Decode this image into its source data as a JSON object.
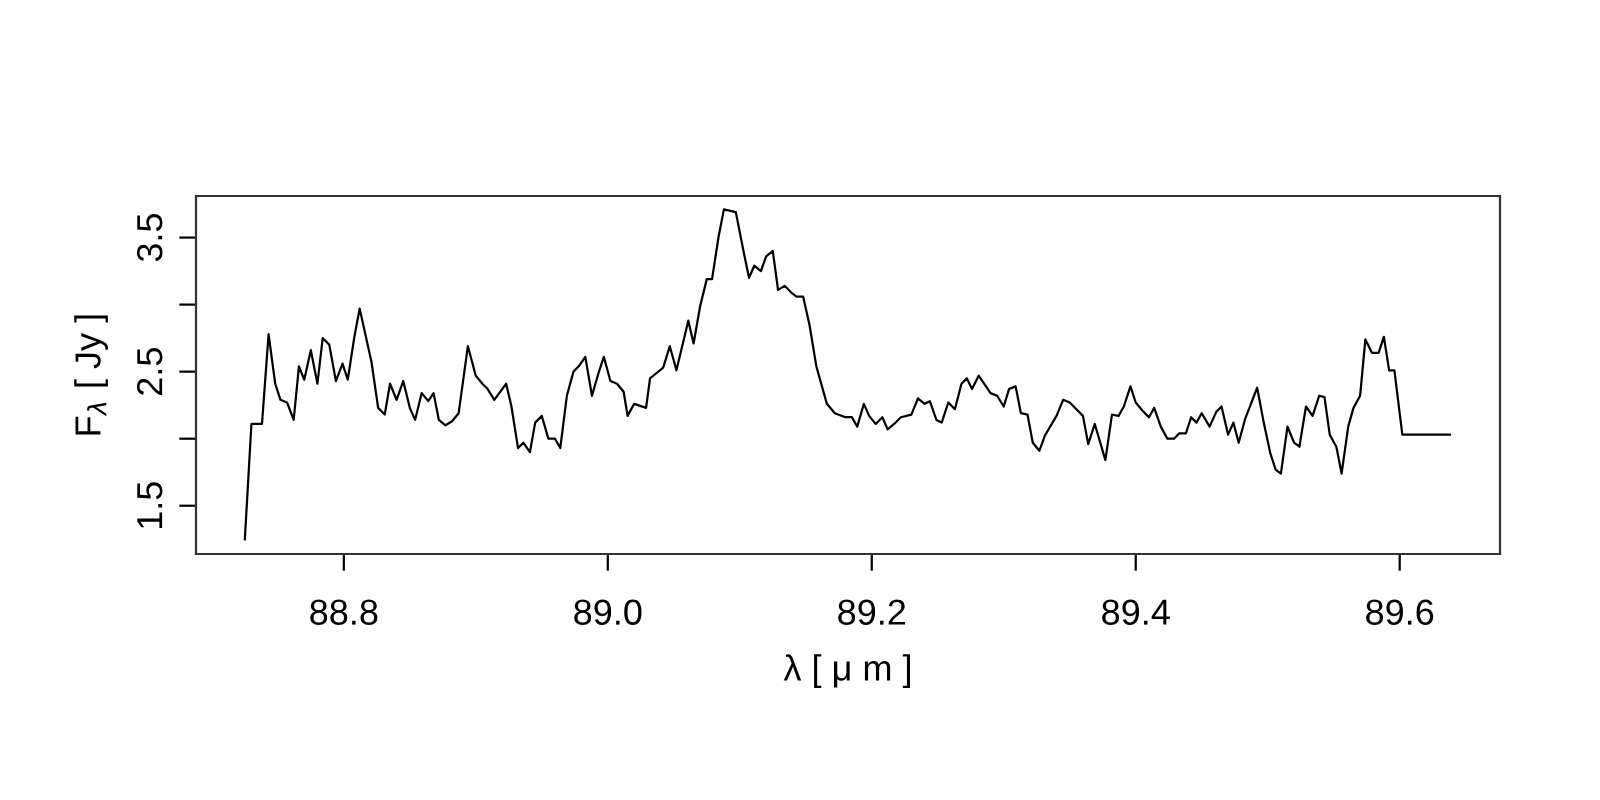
{
  "chart_data": {
    "type": "line",
    "xlabel": "λ [ μ m ]",
    "ylabel": "F$_{λ}$ [ Jy ]",
    "xlim": [
      88.688,
      89.676
    ],
    "ylim": [
      1.14,
      3.81
    ],
    "xticks": [
      88.8,
      {
        "value": 89,
        "label": "89.0"
      },
      89.2,
      89.4,
      89.6
    ],
    "yticks": [
      1.5,
      {
        "value": 2,
        "label": null
      },
      2.5,
      {
        "value": 3,
        "label": null
      },
      3.5
    ],
    "grid": false,
    "legend": false,
    "marker": "none",
    "line_style": "solid",
    "series": [
      {
        "color": "#000000",
        "x": [
          88.725,
          88.73,
          88.738,
          88.743,
          88.748,
          88.752,
          88.757,
          88.762,
          88.766,
          88.77,
          88.775,
          88.78,
          88.784,
          88.789,
          88.794,
          88.799,
          88.803,
          88.808,
          88.812,
          88.821,
          88.826,
          88.831,
          88.835,
          88.84,
          88.845,
          88.85,
          88.854,
          88.859,
          88.864,
          88.868,
          88.872,
          88.877,
          88.882,
          88.887,
          88.894,
          88.9,
          88.905,
          88.909,
          88.914,
          88.923,
          88.927,
          88.932,
          88.936,
          88.941,
          88.945,
          88.95,
          88.955,
          88.96,
          88.964,
          88.969,
          88.974,
          88.978,
          88.983,
          88.988,
          88.993,
          88.997,
          89.002,
          89.007,
          89.012,
          89.015,
          89.02,
          89.029,
          89.032,
          89.037,
          89.042,
          89.047,
          89.052,
          89.061,
          89.065,
          89.07,
          89.075,
          89.079,
          89.084,
          89.088,
          89.097,
          89.103,
          89.107,
          89.111,
          89.116,
          89.12,
          89.125,
          89.129,
          89.134,
          89.139,
          89.143,
          89.148,
          89.153,
          89.158,
          89.166,
          89.172,
          89.18,
          89.185,
          89.189,
          89.194,
          89.198,
          89.203,
          89.208,
          89.212,
          89.217,
          89.222,
          89.23,
          89.235,
          89.24,
          89.244,
          89.249,
          89.253,
          89.258,
          89.263,
          89.268,
          89.272,
          89.276,
          89.281,
          89.29,
          89.295,
          89.3,
          89.304,
          89.309,
          89.313,
          89.318,
          89.322,
          89.327,
          89.331,
          89.34,
          89.345,
          89.35,
          89.36,
          89.364,
          89.369,
          89.377,
          89.382,
          89.387,
          89.391,
          89.396,
          89.4,
          89.405,
          89.41,
          89.414,
          89.419,
          89.424,
          89.429,
          89.433,
          89.438,
          89.442,
          89.446,
          89.45,
          89.456,
          89.461,
          89.465,
          89.47,
          89.474,
          89.478,
          89.483,
          89.492,
          89.497,
          89.502,
          89.506,
          89.51,
          89.515,
          89.52,
          89.524,
          89.529,
          89.534,
          89.539,
          89.543,
          89.547,
          89.552,
          89.556,
          89.561,
          89.565,
          89.57,
          89.574,
          89.579,
          89.584,
          89.588,
          89.592,
          89.596,
          89.602,
          89.638
        ],
        "values": [
          1.25,
          2.11,
          2.11,
          2.78,
          2.41,
          2.29,
          2.27,
          2.14,
          2.54,
          2.44,
          2.66,
          2.41,
          2.75,
          2.7,
          2.43,
          2.56,
          2.44,
          2.76,
          2.97,
          2.57,
          2.23,
          2.18,
          2.41,
          2.29,
          2.43,
          2.23,
          2.14,
          2.34,
          2.28,
          2.34,
          2.14,
          2.1,
          2.13,
          2.19,
          2.69,
          2.47,
          2.41,
          2.37,
          2.29,
          2.41,
          2.24,
          1.93,
          1.97,
          1.9,
          2.12,
          2.17,
          2.0,
          2.0,
          1.93,
          2.32,
          2.5,
          2.54,
          2.61,
          2.32,
          2.49,
          2.61,
          2.43,
          2.41,
          2.35,
          2.17,
          2.26,
          2.23,
          2.45,
          2.49,
          2.53,
          2.69,
          2.51,
          2.88,
          2.71,
          2.99,
          3.19,
          3.19,
          3.51,
          3.71,
          3.69,
          3.39,
          3.2,
          3.29,
          3.25,
          3.36,
          3.4,
          3.11,
          3.14,
          3.09,
          3.06,
          3.06,
          2.84,
          2.54,
          2.26,
          2.19,
          2.16,
          2.16,
          2.09,
          2.26,
          2.17,
          2.11,
          2.16,
          2.07,
          2.11,
          2.16,
          2.18,
          2.3,
          2.26,
          2.28,
          2.14,
          2.12,
          2.27,
          2.22,
          2.41,
          2.45,
          2.37,
          2.47,
          2.34,
          2.32,
          2.24,
          2.37,
          2.39,
          2.19,
          2.18,
          1.97,
          1.91,
          2.02,
          2.17,
          2.29,
          2.27,
          2.17,
          1.96,
          2.11,
          1.84,
          2.18,
          2.17,
          2.24,
          2.39,
          2.27,
          2.21,
          2.16,
          2.23,
          2.09,
          2.0,
          2.0,
          2.04,
          2.04,
          2.16,
          2.12,
          2.19,
          2.09,
          2.2,
          2.24,
          2.03,
          2.12,
          1.97,
          2.15,
          2.38,
          2.12,
          1.89,
          1.77,
          1.74,
          2.09,
          1.97,
          1.94,
          2.24,
          2.17,
          2.32,
          2.31,
          2.03,
          1.94,
          1.74,
          2.09,
          2.23,
          2.32,
          2.74,
          2.64,
          2.64,
          2.76,
          2.51,
          2.51,
          2.03,
          2.03
        ]
      }
    ]
  }
}
